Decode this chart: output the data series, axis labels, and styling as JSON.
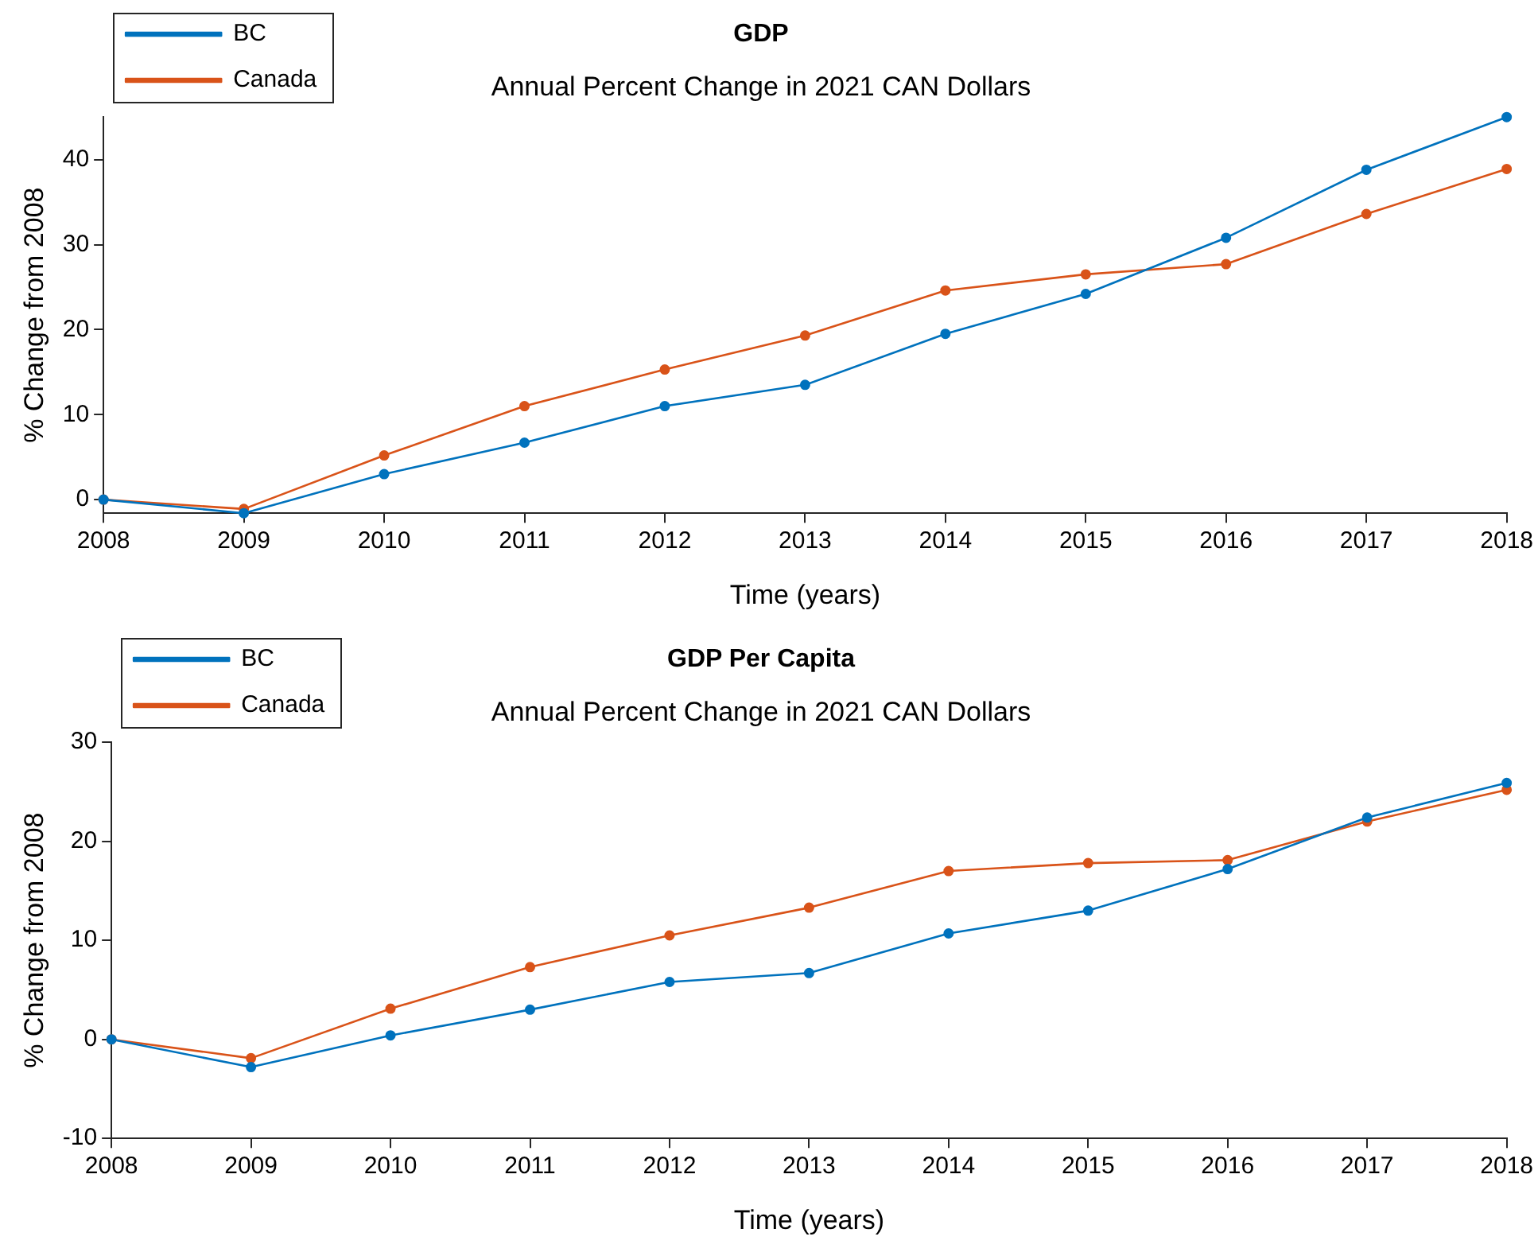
{
  "chart_data": [
    {
      "type": "line",
      "title": "GDP",
      "subtitle": "Annual Percent Change in 2021 CAN Dollars",
      "xlabel": "Time (years)",
      "ylabel": "% Change from 2008",
      "x": [
        2008,
        2009,
        2010,
        2011,
        2012,
        2013,
        2014,
        2015,
        2016,
        2017,
        2018
      ],
      "xlim": [
        2008,
        2018
      ],
      "xticks": [
        2008,
        2009,
        2010,
        2011,
        2012,
        2013,
        2014,
        2015,
        2016,
        2017,
        2018
      ],
      "ylim": [
        -1.6,
        45
      ],
      "yticks": [
        0,
        10,
        20,
        30,
        40
      ],
      "grid": false,
      "legend": "top left",
      "marker": "circle",
      "line_style": "solid",
      "series": [
        {
          "name": "BC",
          "color": "#0072bd",
          "values": [
            0,
            -1.6,
            3.0,
            6.7,
            11.0,
            13.5,
            19.5,
            24.2,
            30.8,
            38.8,
            45.0
          ]
        },
        {
          "name": "Canada",
          "color": "#d95319",
          "values": [
            0,
            -1.1,
            5.2,
            11.0,
            15.3,
            19.3,
            24.6,
            26.5,
            27.7,
            33.6,
            38.9
          ]
        }
      ]
    },
    {
      "type": "line",
      "title": "GDP Per Capita",
      "subtitle": "Annual Percent Change in 2021 CAN Dollars",
      "xlabel": "Time (years)",
      "ylabel": "% Change from 2008",
      "x": [
        2008,
        2009,
        2010,
        2011,
        2012,
        2013,
        2014,
        2015,
        2016,
        2017,
        2018
      ],
      "xlim": [
        2008,
        2018
      ],
      "xticks": [
        2008,
        2009,
        2010,
        2011,
        2012,
        2013,
        2014,
        2015,
        2016,
        2017,
        2018
      ],
      "ylim": [
        -10,
        30
      ],
      "yticks": [
        -10,
        0,
        10,
        20,
        30
      ],
      "grid": false,
      "legend": "top left",
      "marker": "circle",
      "line_style": "solid",
      "series": [
        {
          "name": "BC",
          "color": "#0072bd",
          "values": [
            0,
            -2.8,
            0.4,
            3.0,
            5.8,
            6.7,
            10.7,
            13.0,
            17.2,
            22.4,
            25.9
          ]
        },
        {
          "name": "Canada",
          "color": "#d95319",
          "values": [
            0,
            -1.9,
            3.1,
            7.3,
            10.5,
            13.3,
            17.0,
            17.8,
            18.1,
            22.0,
            25.2
          ]
        }
      ]
    }
  ]
}
